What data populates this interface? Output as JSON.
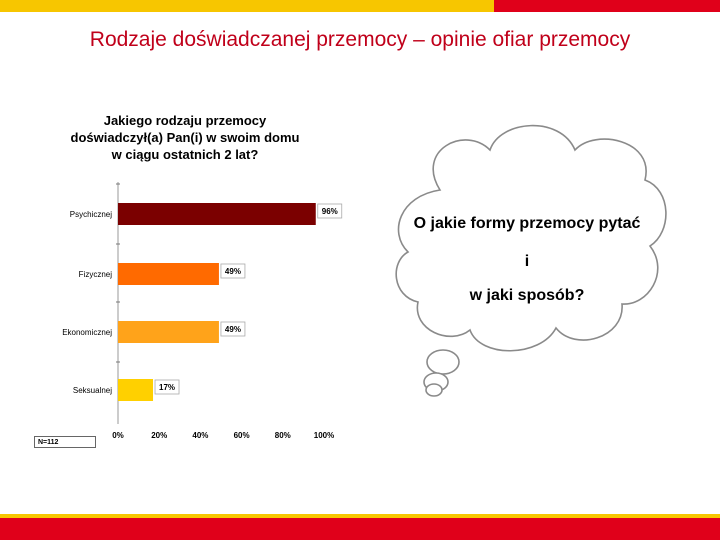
{
  "slide": {
    "title": "Rodzaje doświadczanej przemocy – opinie ofiar przemocy",
    "colors": {
      "band_primary": "#f7c600",
      "band_accent": "#e0001a",
      "title": "#c0001a"
    }
  },
  "chart_data": {
    "type": "bar",
    "orientation": "horizontal",
    "title": "Jakiego rodzaju przemocy doświadczył(a) Pan(i) w swoim domu w ciągu ostatnich 2 lat?",
    "categories": [
      "Psychicznej",
      "Fizycznej",
      "Ekonomicznej",
      "Seksualnej"
    ],
    "values": [
      96,
      49,
      49,
      17
    ],
    "value_labels": [
      "96%",
      "49%",
      "49%",
      "17%"
    ],
    "bar_colors": [
      "#7b0000",
      "#ff6a00",
      "#ffa31a",
      "#ffd000"
    ],
    "xlim": [
      0,
      100
    ],
    "x_ticks": [
      "0%",
      "20%",
      "40%",
      "60%",
      "80%",
      "100%"
    ],
    "grid": false,
    "note": "N=112"
  },
  "cloud": {
    "line1": "O jakie formy przemocy pytać",
    "line2": "i",
    "line3": "w jaki sposób?"
  }
}
